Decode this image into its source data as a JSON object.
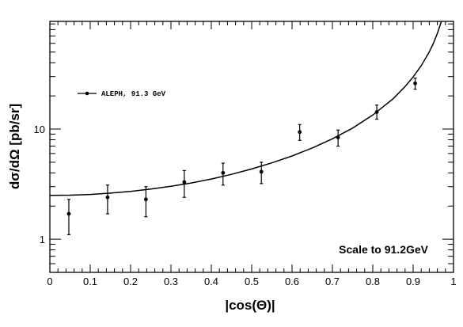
{
  "chart_data": {
    "type": "scatter",
    "xlabel": "|cos(Θ)|",
    "ylabel": "dσ/dΩ [pb/sr]",
    "xlim": [
      0,
      1
    ],
    "ylim": [
      0.5,
      95
    ],
    "yscale": "log",
    "grid": false,
    "x_ticks": [
      "0",
      "0.1",
      "0.2",
      "0.3",
      "0.4",
      "0.5",
      "0.6",
      "0.7",
      "0.8",
      "0.9",
      "1"
    ],
    "y_ticks": [
      "1",
      "10"
    ],
    "legend_position": "top-left",
    "annotation": "Scale to 91.2GeV",
    "series": [
      {
        "name": "ALEPH,  91.3 GeV",
        "kind": "points_with_errors",
        "color": "#000000",
        "points": [
          {
            "x": 0.047,
            "y": 1.7,
            "yerr_low": 0.6,
            "yerr_high": 0.6
          },
          {
            "x": 0.143,
            "y": 2.4,
            "yerr_low": 0.7,
            "yerr_high": 0.7
          },
          {
            "x": 0.238,
            "y": 2.3,
            "yerr_low": 0.7,
            "yerr_high": 0.7
          },
          {
            "x": 0.333,
            "y": 3.3,
            "yerr_low": 0.9,
            "yerr_high": 0.9
          },
          {
            "x": 0.429,
            "y": 4.0,
            "yerr_low": 0.9,
            "yerr_high": 0.9
          },
          {
            "x": 0.524,
            "y": 4.1,
            "yerr_low": 0.9,
            "yerr_high": 0.9
          },
          {
            "x": 0.619,
            "y": 9.4,
            "yerr_low": 1.5,
            "yerr_high": 1.6
          },
          {
            "x": 0.714,
            "y": 8.4,
            "yerr_low": 1.4,
            "yerr_high": 1.4
          },
          {
            "x": 0.81,
            "y": 14.3,
            "yerr_low": 2.0,
            "yerr_high": 2.2
          },
          {
            "x": 0.905,
            "y": 26.0,
            "yerr_low": 3.0,
            "yerr_high": 3.0
          }
        ]
      },
      {
        "name": "",
        "kind": "curve",
        "color": "#000000",
        "x": [
          0,
          0.05,
          0.1,
          0.15,
          0.2,
          0.25,
          0.3,
          0.35,
          0.4,
          0.45,
          0.5,
          0.55,
          0.6,
          0.65,
          0.7,
          0.75,
          0.8,
          0.85,
          0.88,
          0.9,
          0.92,
          0.94,
          0.95,
          0.96,
          0.97,
          0.975
        ],
        "y": [
          2.5,
          2.51,
          2.55,
          2.62,
          2.72,
          2.85,
          3.02,
          3.24,
          3.52,
          3.88,
          4.34,
          4.93,
          5.7,
          6.73,
          8.16,
          10.2,
          13.4,
          18.8,
          24.3,
          29.7,
          37.6,
          50.2,
          59.9,
          73.9,
          95.0,
          110.0
        ]
      }
    ]
  }
}
